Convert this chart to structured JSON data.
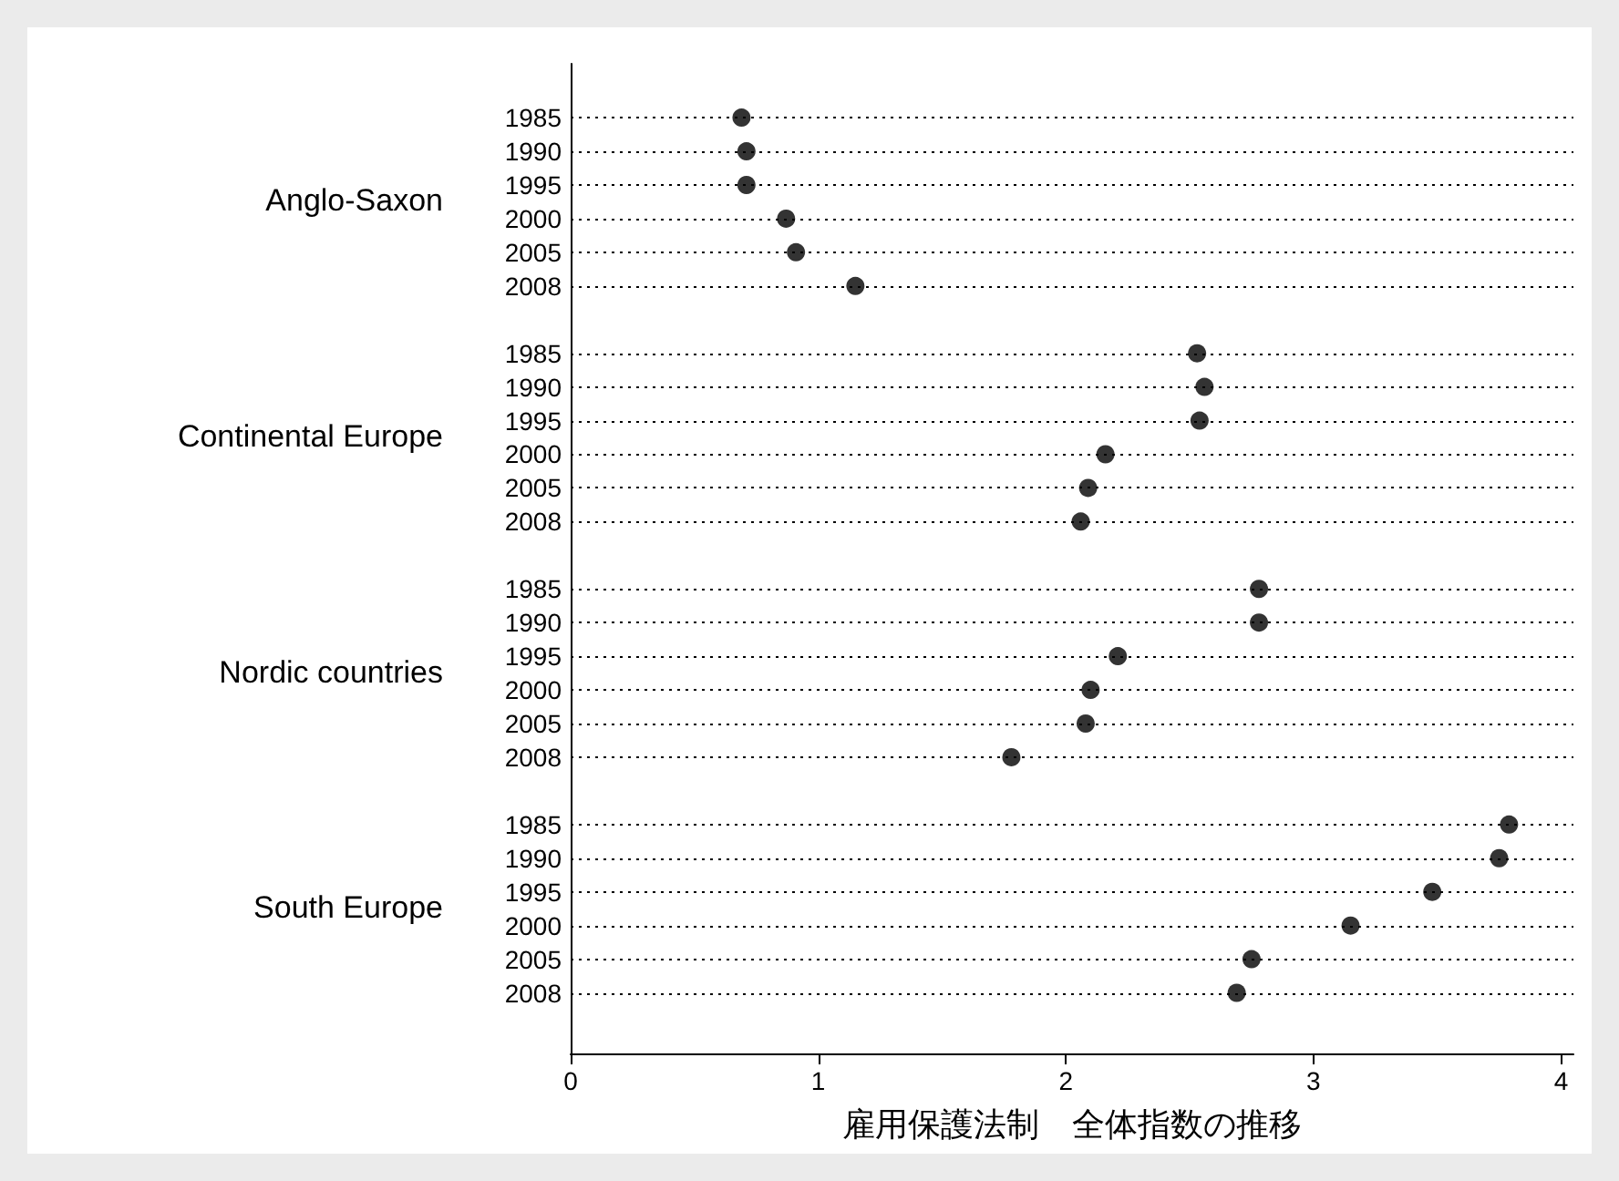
{
  "chart_data": {
    "type": "scatter",
    "orientation": "horizontal",
    "xlabel": "雇用保護法制　全体指数の推移",
    "annotations": [
      "Anglo-Saxon",
      "Continental Europe",
      "Nordic countries",
      "South Europe"
    ],
    "categories": [
      "1985",
      "1990",
      "1995",
      "2000",
      "2005",
      "2008",
      null,
      "1985",
      "1990",
      "1995",
      "2000",
      "2005",
      "2008",
      null,
      "1985",
      "1990",
      "1995",
      "2000",
      "2005",
      "2008",
      null,
      "1985",
      "1990",
      "1995",
      "2000",
      "2005",
      "2008"
    ],
    "series": [
      {
        "color": "#000000",
        "values": [
          0.69,
          0.71,
          0.71,
          0.87,
          0.91,
          1.15,
          null,
          2.53,
          2.56,
          2.54,
          2.16,
          2.09,
          2.06,
          null,
          2.78,
          2.78,
          2.21,
          2.1,
          2.08,
          1.78,
          null,
          3.79,
          3.75,
          3.48,
          3.15,
          2.75,
          2.69
        ]
      }
    ],
    "xlim": [
      0,
      4.05
    ],
    "xticks": [
      0,
      1,
      2,
      3,
      4
    ],
    "grid": "y",
    "marker": "circle"
  }
}
